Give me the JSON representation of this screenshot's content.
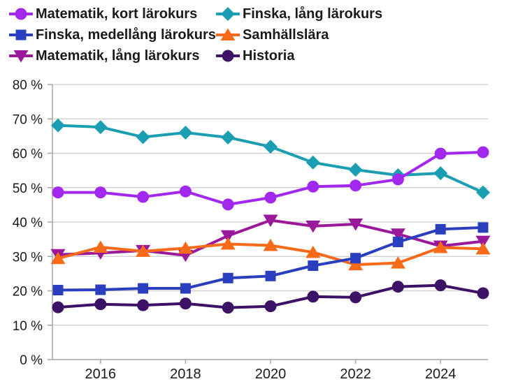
{
  "chart_data": {
    "type": "line",
    "title": "",
    "x": [
      2015,
      2016,
      2017,
      2018,
      2019,
      2020,
      2021,
      2022,
      2023,
      2024,
      2025
    ],
    "x_ticks_labeled": [
      2016,
      2018,
      2020,
      2022,
      2024
    ],
    "y_axis": {
      "min": 0,
      "max": 80,
      "step": 10,
      "suffix": " %"
    },
    "grid": "horizontal",
    "legend": {
      "position": "top-left",
      "columns": 2,
      "fill": "column-major"
    },
    "series": [
      {
        "name": "Matematik, kort lärokurs",
        "color": "#a228ee",
        "marker": "circle",
        "values": [
          48.6,
          48.6,
          47.3,
          48.9,
          45.1,
          47.1,
          50.3,
          50.6,
          52.4,
          59.9,
          60.3
        ]
      },
      {
        "name": "Finska, medellång lärokurs",
        "color": "#2a3fbe",
        "marker": "square",
        "values": [
          20.2,
          20.3,
          20.7,
          20.7,
          23.7,
          24.3,
          27.3,
          29.5,
          34.2,
          37.9,
          38.4
        ]
      },
      {
        "name": "Matematik, lång lärokurs",
        "color": "#9a189a",
        "marker": "triangle-down",
        "values": [
          30.5,
          31.0,
          31.7,
          30.3,
          36.0,
          40.5,
          38.8,
          39.4,
          36.5,
          33.0,
          34.4
        ]
      },
      {
        "name": "Finska, lång lärokurs",
        "color": "#1b9db2",
        "marker": "diamond",
        "values": [
          68.1,
          67.6,
          64.7,
          66.0,
          64.6,
          61.9,
          57.3,
          55.2,
          53.6,
          54.2,
          48.6
        ]
      },
      {
        "name": "Samhällslära",
        "color": "#f76a19",
        "marker": "triangle-up",
        "values": [
          29.4,
          32.7,
          31.5,
          32.4,
          33.6,
          33.2,
          31.2,
          27.6,
          28.1,
          32.6,
          32.2
        ]
      },
      {
        "name": "Historia",
        "color": "#3c1166",
        "marker": "circle",
        "values": [
          15.2,
          16.1,
          15.8,
          16.3,
          15.1,
          15.5,
          18.3,
          18.1,
          21.2,
          21.6,
          19.3
        ]
      }
    ],
    "z_order": [
      3,
      2,
      4,
      1,
      5,
      0
    ],
    "axis_color": "#a6a6a6",
    "grid_color": "#cccccc",
    "text_color": "#1a1a1a"
  }
}
